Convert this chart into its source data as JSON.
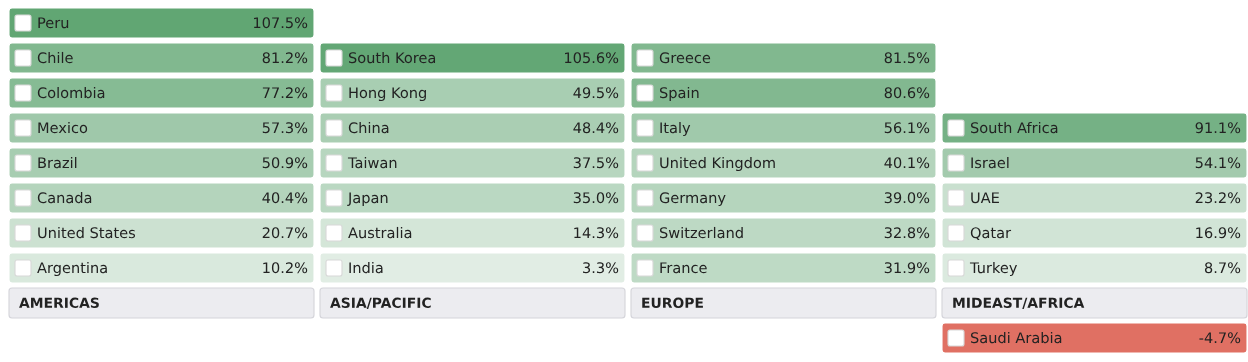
{
  "chart_data": [
    {
      "type": "other",
      "title": "AMERICAS",
      "categories": [
        "Peru",
        "Chile",
        "Colombia",
        "Mexico",
        "Brazil",
        "Canada",
        "United States",
        "Argentina"
      ],
      "values": [
        107.5,
        81.2,
        77.2,
        57.3,
        50.9,
        40.4,
        20.7,
        10.2
      ],
      "value_labels": [
        "107.5%",
        "81.2%",
        "77.2%",
        "57.3%",
        "50.9%",
        "40.4%",
        "20.7%",
        "10.2%"
      ]
    },
    {
      "type": "other",
      "title": "ASIA/PACIFIC",
      "categories": [
        "South Korea",
        "Hong Kong",
        "China",
        "Taiwan",
        "Japan",
        "Australia",
        "India"
      ],
      "values": [
        105.6,
        49.5,
        48.4,
        37.5,
        35.0,
        14.3,
        3.3
      ],
      "value_labels": [
        "105.6%",
        "49.5%",
        "48.4%",
        "37.5%",
        "35.0%",
        "14.3%",
        "3.3%"
      ]
    },
    {
      "type": "other",
      "title": "EUROPE",
      "categories": [
        "Greece",
        "Spain",
        "Italy",
        "United Kingdom",
        "Germany",
        "Switzerland",
        "France"
      ],
      "values": [
        81.5,
        80.6,
        56.1,
        40.1,
        39.0,
        32.8,
        31.9
      ],
      "value_labels": [
        "81.5%",
        "80.6%",
        "56.1%",
        "40.1%",
        "39.0%",
        "32.8%",
        "31.9%"
      ]
    },
    {
      "type": "other",
      "title": "MIDEAST/AFRICA",
      "categories": [
        "South Africa",
        "Israel",
        "UAE",
        "Qatar",
        "Turkey"
      ],
      "values": [
        91.1,
        54.1,
        23.2,
        16.9,
        8.7
      ],
      "value_labels": [
        "91.1%",
        "54.1%",
        "23.2%",
        "16.9%",
        "8.7%"
      ]
    },
    {
      "type": "other",
      "categories": [
        "Saudi Arabia"
      ],
      "values": [
        -4.7
      ],
      "value_labels": [
        "-4.7%"
      ]
    }
  ]
}
